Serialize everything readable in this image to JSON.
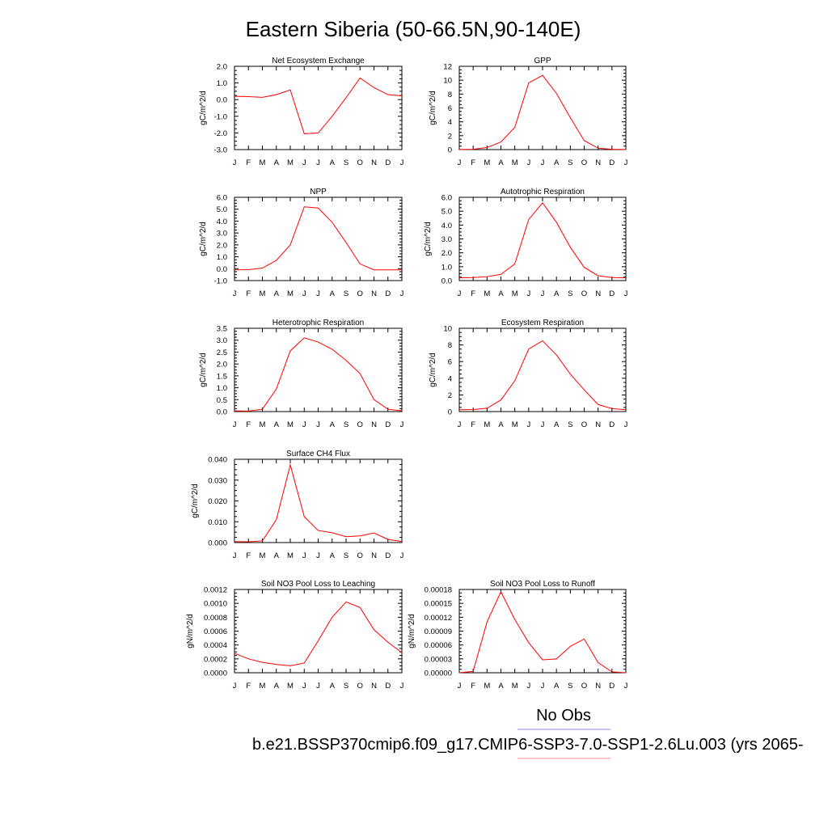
{
  "figure": {
    "title": "Eastern Siberia (50-66.5N,90-140E)",
    "legend": [
      {
        "label": "No Obs",
        "color": "#8888ff"
      },
      {
        "label": "b.e21.BSSP370cmip6.f09_g17.CMIP6-SSP3-7.0-SSP1-2.6Lu.003 (yrs 2065-",
        "color": "#ff8888"
      }
    ]
  },
  "chart_data": [
    {
      "type": "line",
      "title": "Net Ecosystem Exchange",
      "ylabel": "gC/m^2/d",
      "categories": [
        "J",
        "F",
        "M",
        "A",
        "M",
        "J",
        "J",
        "A",
        "S",
        "O",
        "N",
        "D",
        "J"
      ],
      "yticks": [
        "-3.0",
        "-2.0",
        "-1.0",
        "0.0",
        "1.0",
        "2.0"
      ],
      "ylim": [
        -3,
        2
      ],
      "series": [
        {
          "values": [
            0.2,
            0.18,
            0.14,
            0.3,
            0.58,
            -2.05,
            -2.0,
            -1.0,
            0.12,
            1.3,
            0.72,
            0.3,
            0.22
          ],
          "color": "#ff0000"
        }
      ]
    },
    {
      "type": "line",
      "title": "GPP",
      "ylabel": "gC/m^2/d",
      "categories": [
        "J",
        "F",
        "M",
        "A",
        "M",
        "J",
        "J",
        "A",
        "S",
        "O",
        "N",
        "D",
        "J"
      ],
      "yticks": [
        "0",
        "2",
        "4",
        "6",
        "8",
        "10",
        "12"
      ],
      "ylim": [
        0,
        12
      ],
      "series": [
        {
          "values": [
            0.02,
            0.05,
            0.3,
            1.1,
            3.2,
            9.6,
            10.7,
            8.1,
            4.6,
            1.3,
            0.2,
            0.04,
            0.02
          ],
          "color": "#ff0000"
        }
      ]
    },
    {
      "type": "line",
      "title": "NPP",
      "ylabel": "gC/m^2/d",
      "categories": [
        "J",
        "F",
        "M",
        "A",
        "M",
        "J",
        "J",
        "A",
        "S",
        "O",
        "N",
        "D",
        "J"
      ],
      "yticks": [
        "-1.0",
        "0.0",
        "1.0",
        "2.0",
        "3.0",
        "4.0",
        "5.0",
        "6.0"
      ],
      "ylim": [
        -1,
        6
      ],
      "series": [
        {
          "values": [
            -0.1,
            -0.08,
            0.05,
            0.7,
            2.0,
            5.2,
            5.1,
            3.9,
            2.2,
            0.4,
            -0.1,
            -0.1,
            -0.1
          ],
          "color": "#ff0000"
        }
      ]
    },
    {
      "type": "line",
      "title": "Autotrophic Respiration",
      "ylabel": "gC/m^2/d",
      "categories": [
        "J",
        "F",
        "M",
        "A",
        "M",
        "J",
        "J",
        "A",
        "S",
        "O",
        "N",
        "D",
        "J"
      ],
      "yticks": [
        "0.0",
        "1.0",
        "2.0",
        "3.0",
        "4.0",
        "5.0",
        "6.0"
      ],
      "ylim": [
        0,
        6
      ],
      "series": [
        {
          "values": [
            0.2,
            0.22,
            0.28,
            0.45,
            1.2,
            4.4,
            5.6,
            4.2,
            2.4,
            0.95,
            0.35,
            0.22,
            0.2
          ],
          "color": "#ff0000"
        }
      ]
    },
    {
      "type": "line",
      "title": "Heterotrophic Respiration",
      "ylabel": "gC/m^2/d",
      "categories": [
        "J",
        "F",
        "M",
        "A",
        "M",
        "J",
        "J",
        "A",
        "S",
        "O",
        "N",
        "D",
        "J"
      ],
      "yticks": [
        "0.0",
        "0.5",
        "1.0",
        "1.5",
        "2.0",
        "2.5",
        "3.0",
        "3.5"
      ],
      "ylim": [
        0,
        3.5
      ],
      "series": [
        {
          "values": [
            0.03,
            0.02,
            0.1,
            0.95,
            2.55,
            3.1,
            2.92,
            2.62,
            2.15,
            1.6,
            0.5,
            0.1,
            0.03
          ],
          "color": "#ff0000"
        }
      ]
    },
    {
      "type": "line",
      "title": "Ecosystem Respiration",
      "ylabel": "gC/m^2/d",
      "categories": [
        "J",
        "F",
        "M",
        "A",
        "M",
        "J",
        "J",
        "A",
        "S",
        "O",
        "N",
        "D",
        "J"
      ],
      "yticks": [
        "0",
        "2",
        "4",
        "6",
        "8",
        "10"
      ],
      "ylim": [
        0,
        10
      ],
      "series": [
        {
          "values": [
            0.22,
            0.24,
            0.4,
            1.4,
            3.7,
            7.5,
            8.5,
            6.8,
            4.5,
            2.6,
            0.85,
            0.35,
            0.22
          ],
          "color": "#ff0000"
        }
      ]
    },
    {
      "type": "line",
      "title": "Surface CH4 Flux",
      "ylabel": "gC/m^2/d",
      "categories": [
        "J",
        "F",
        "M",
        "A",
        "M",
        "J",
        "J",
        "A",
        "S",
        "O",
        "N",
        "D",
        "J"
      ],
      "yticks": [
        "0.000",
        "0.010",
        "0.020",
        "0.030",
        "0.040"
      ],
      "ylim": [
        0,
        0.04
      ],
      "series": [
        {
          "values": [
            0.0005,
            0.0004,
            0.0008,
            0.011,
            0.0373,
            0.0125,
            0.0058,
            0.0047,
            0.0028,
            0.0032,
            0.0046,
            0.0015,
            0.0005
          ],
          "color": "#ff0000"
        }
      ]
    },
    {
      "type": "line",
      "title": "Soil NO3 Pool Loss to Leaching",
      "ylabel": "gN/m^2/d",
      "categories": [
        "J",
        "F",
        "M",
        "A",
        "M",
        "J",
        "J",
        "A",
        "S",
        "O",
        "N",
        "D",
        "J"
      ],
      "yticks": [
        "0.0000",
        "0.0002",
        "0.0004",
        "0.0006",
        "0.0008",
        "0.0010",
        "0.0012"
      ],
      "ylim": [
        0,
        0.0012
      ],
      "series": [
        {
          "values": [
            0.00028,
            0.0002,
            0.00015,
            0.00012,
            0.0001,
            0.00014,
            0.00046,
            0.0008,
            0.00102,
            0.00094,
            0.00062,
            0.00044,
            0.00029
          ],
          "color": "#ff0000"
        }
      ]
    },
    {
      "type": "line",
      "title": "Soil NO3 Pool Loss to Runoff",
      "ylabel": "gN/m^2/d",
      "categories": [
        "J",
        "F",
        "M",
        "A",
        "M",
        "J",
        "J",
        "A",
        "S",
        "O",
        "N",
        "D",
        "J"
      ],
      "yticks": [
        "0.00000",
        "0.00003",
        "0.00006",
        "0.00009",
        "0.00012",
        "0.00015",
        "0.00018"
      ],
      "ylim": [
        0,
        0.00018
      ],
      "series": [
        {
          "values": [
            0.0,
            3e-06,
            0.00011,
            0.000175,
            0.000115,
            6.5e-05,
            2.8e-05,
            3e-05,
            5.7e-05,
            7.3e-05,
            2.2e-05,
            2e-06,
            0.0
          ],
          "color": "#ff0000"
        }
      ]
    }
  ]
}
